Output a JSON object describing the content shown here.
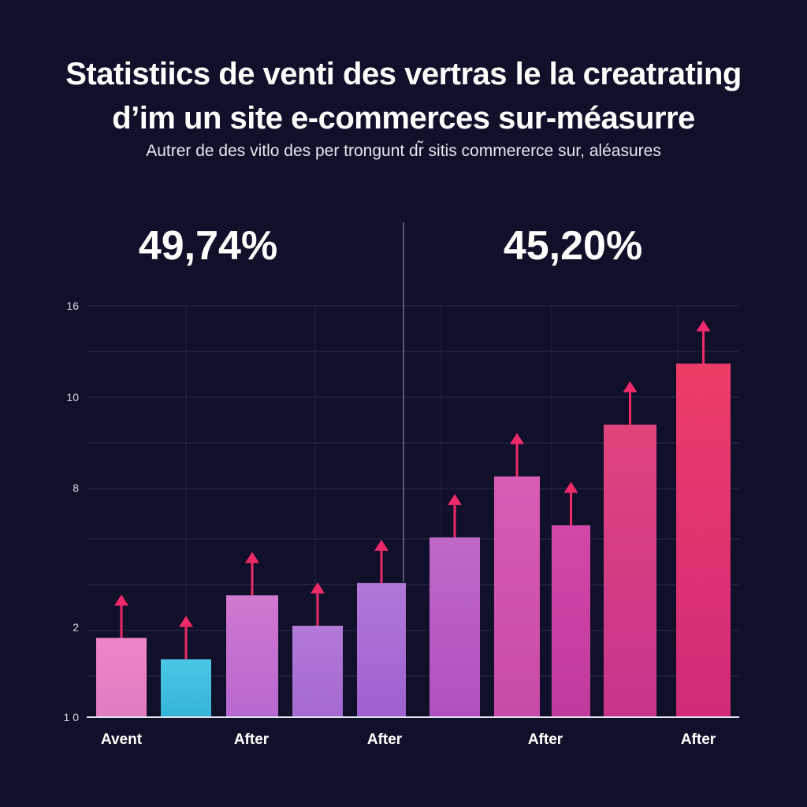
{
  "header": {
    "title_line1": "Statistiics de venti des vertras le la creatrating",
    "title_line2": "d’im un site e-commerces sur-méasurre",
    "subtitle": "Autrer de des vitlo des per trongunt dr̃ sitis commererce sur, aléasures"
  },
  "chart_data": {
    "type": "bar",
    "ytick_labels": [
      "1 0",
      "2",
      "8",
      "10",
      "16"
    ],
    "bar_values": [
      2.6,
      1.9,
      4.0,
      3.0,
      4.4,
      5.9,
      7.9,
      6.3,
      9.6,
      11.6
    ],
    "bar_colors": [
      [
        "#f084c8",
        "#e07cc0"
      ],
      [
        "#4cc7e6",
        "#34b4d8"
      ],
      [
        "#d078d0",
        "#b868d0"
      ],
      [
        "#b47ad8",
        "#a468d0"
      ],
      [
        "#b078d8",
        "#a060d0"
      ],
      [
        "#c068c8",
        "#b050c0"
      ],
      [
        "#d85cb4",
        "#c84aa8"
      ],
      [
        "#d048a8",
        "#c03a9c"
      ],
      [
        "#e0447c",
        "#c8348c"
      ],
      [
        "#ee3c68",
        "#d02a78"
      ]
    ],
    "arrow_color": "#ee2a6a",
    "x_labels": [
      "Avent",
      "After",
      "After",
      "After",
      "After"
    ],
    "annotations": [
      "49,74%",
      "45,20%"
    ],
    "grid": true
  }
}
